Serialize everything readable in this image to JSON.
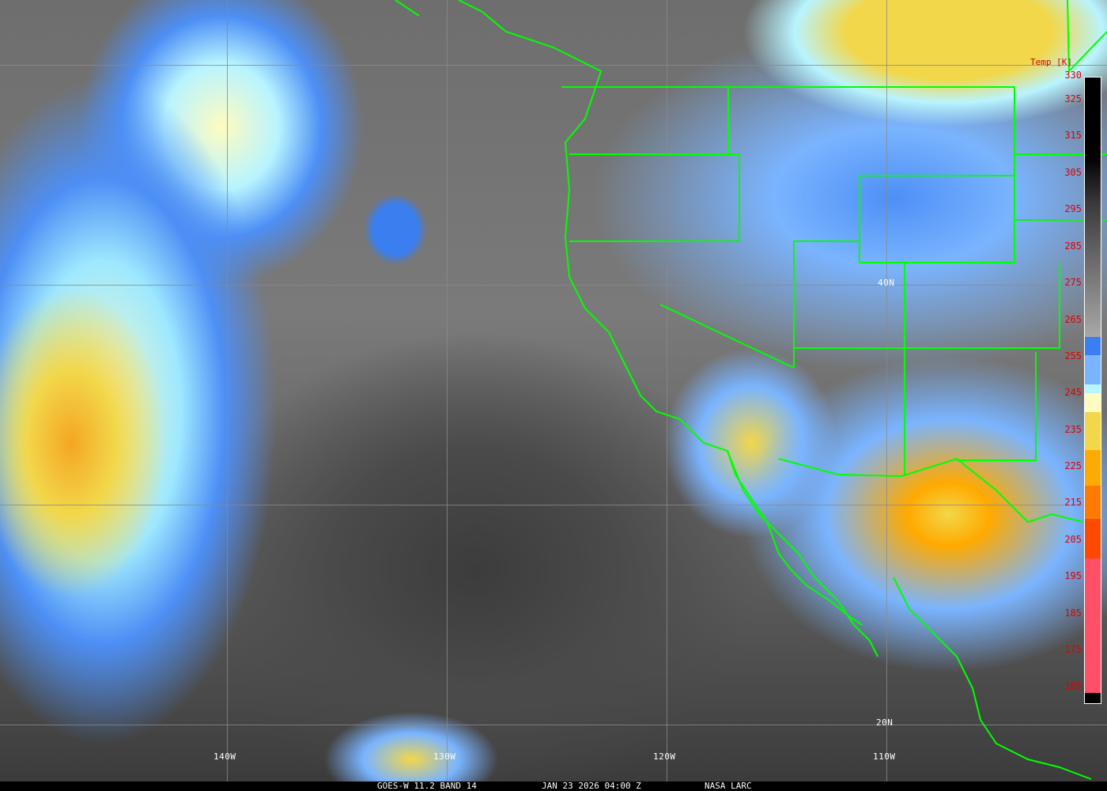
{
  "colorbar": {
    "title": "Temp [K]",
    "ticks": [
      "330",
      "325",
      "315",
      "305",
      "295",
      "285",
      "275",
      "265",
      "255",
      "245",
      "235",
      "225",
      "215",
      "205",
      "195",
      "185",
      "175",
      "165"
    ],
    "colors": {
      "black": "#000000",
      "gray_light": "#a8a8a8",
      "blue": "#3a7ef0",
      "light_blue": "#7ab4ff",
      "cyan": "#b8f4ff",
      "pale_yellow": "#fffbc0",
      "yellow": "#f2d74a",
      "orange": "#ffaa00",
      "dark_orange": "#ff7a00",
      "red_orange": "#ff4800",
      "pink": "#ff5068"
    }
  },
  "map": {
    "longitude_labels": [
      "140W",
      "130W",
      "120W",
      "110W"
    ],
    "latitude_labels": [
      "40N",
      "20N"
    ],
    "boundary_color": "#00ff00"
  },
  "caption": {
    "product": "GOES-W 11.2 BAND 14",
    "datetime": "JAN 23 2026 04:00 Z",
    "source": "NASA LARC"
  }
}
